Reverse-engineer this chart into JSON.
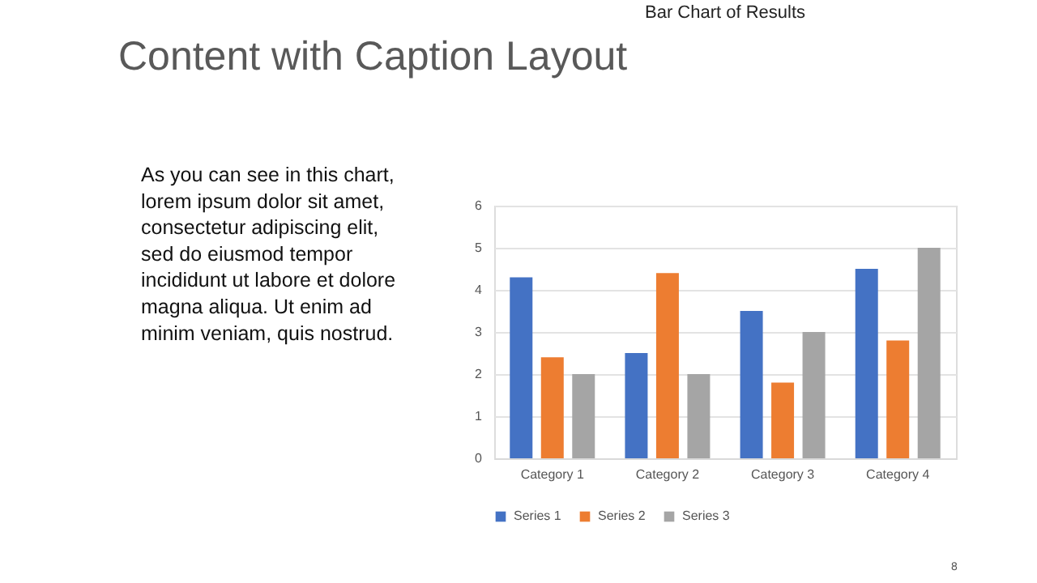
{
  "chart_data": {
    "type": "bar",
    "title": "Bar Chart of Results",
    "categories": [
      "Category 1",
      "Category 2",
      "Category 3",
      "Category 4"
    ],
    "series": [
      {
        "name": "Series 1",
        "color": "#4472c4",
        "values": [
          4.3,
          2.5,
          3.5,
          4.5
        ]
      },
      {
        "name": "Series 2",
        "color": "#ed7d31",
        "values": [
          2.4,
          4.4,
          1.8,
          2.8
        ]
      },
      {
        "name": "Series 3",
        "color": "#a5a5a5",
        "values": [
          2,
          2,
          3,
          5
        ]
      }
    ],
    "ylim": [
      0,
      6
    ],
    "yticks": [
      0,
      1,
      2,
      3,
      4,
      5,
      6
    ],
    "grid": "y",
    "legend": "bottom",
    "annotations": [
      "Content with Caption Layout",
      "As you can see in this chart,",
      "lorem ipsum dolor sit amet,",
      "consectetur adipiscing elit,",
      "sed do eiusmod tempor",
      "incididunt ut labore et dolore",
      "magna aliqua. Ut enim ad",
      "minim veniam, quis nostrud.",
      "8"
    ]
  }
}
